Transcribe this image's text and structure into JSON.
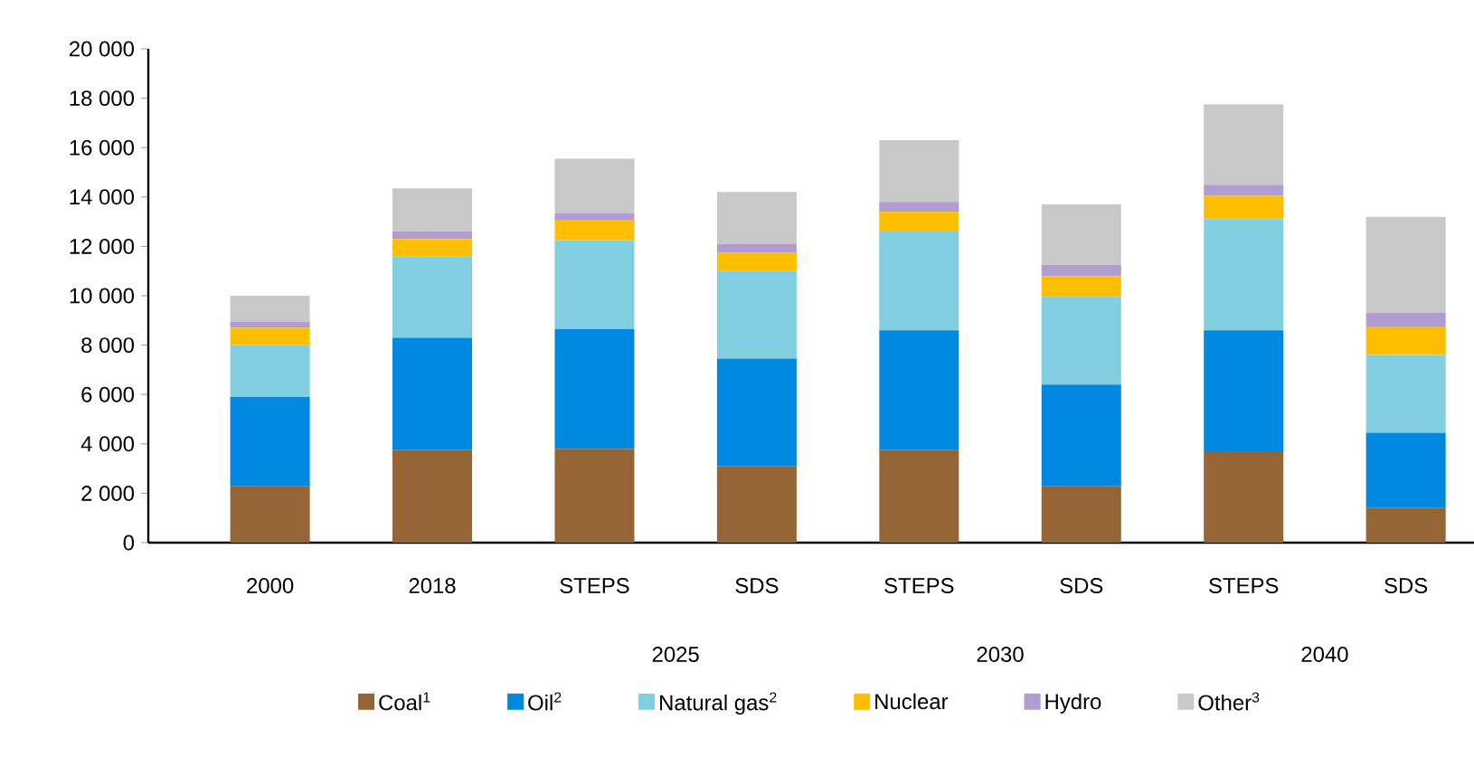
{
  "chart_data": {
    "type": "bar",
    "stacked": true,
    "categories": [
      "2000",
      "2018",
      "STEPS",
      "SDS",
      "STEPS",
      "SDS",
      "STEPS",
      "SDS"
    ],
    "series": [
      {
        "name": "Coal$^{1}$",
        "color": "#956535",
        "values": [
          2300,
          3750,
          3800,
          3100,
          3750,
          2300,
          3700,
          1400
        ]
      },
      {
        "name": "Oil$^{2}$",
        "color": "#0088e0",
        "values": [
          3600,
          4550,
          4850,
          4350,
          4850,
          4100,
          4900,
          3050
        ]
      },
      {
        "name": "Natural gas$^{2}$",
        "color": "#80cee0",
        "values": [
          2100,
          3300,
          3600,
          3550,
          4000,
          3550,
          4500,
          3150
        ]
      },
      {
        "name": "Nuclear",
        "color": "#ffbf00",
        "values": [
          700,
          700,
          800,
          750,
          800,
          850,
          950,
          1150
        ]
      },
      {
        "name": "Hydro",
        "color": "#b19cd0",
        "values": [
          250,
          300,
          300,
          350,
          400,
          450,
          450,
          550
        ]
      },
      {
        "name": "Other$^{3}$",
        "color": "#c8c8c8",
        "values": [
          1050,
          1750,
          2200,
          2100,
          2500,
          2450,
          3250,
          3900
        ]
      }
    ],
    "annotations": [
      "2025",
      "2030",
      "2040"
    ],
    "ylim": [
      0,
      20000
    ],
    "yticks": [
      0,
      {
        "value": 2000,
        "label": "2 000"
      },
      {
        "value": 4000,
        "label": "4 000"
      },
      {
        "value": 6000,
        "label": "6 000"
      },
      {
        "value": 8000,
        "label": "8 000"
      },
      {
        "value": 10000,
        "label": "10 000"
      },
      {
        "value": 12000,
        "label": "12 000"
      },
      {
        "value": 14000,
        "label": "14 000"
      },
      {
        "value": 16000,
        "label": "16 000"
      },
      {
        "value": 18000,
        "label": "18 000"
      },
      {
        "value": 20000,
        "label": "20 000"
      }
    ],
    "grid": false,
    "legend": "bottom"
  }
}
